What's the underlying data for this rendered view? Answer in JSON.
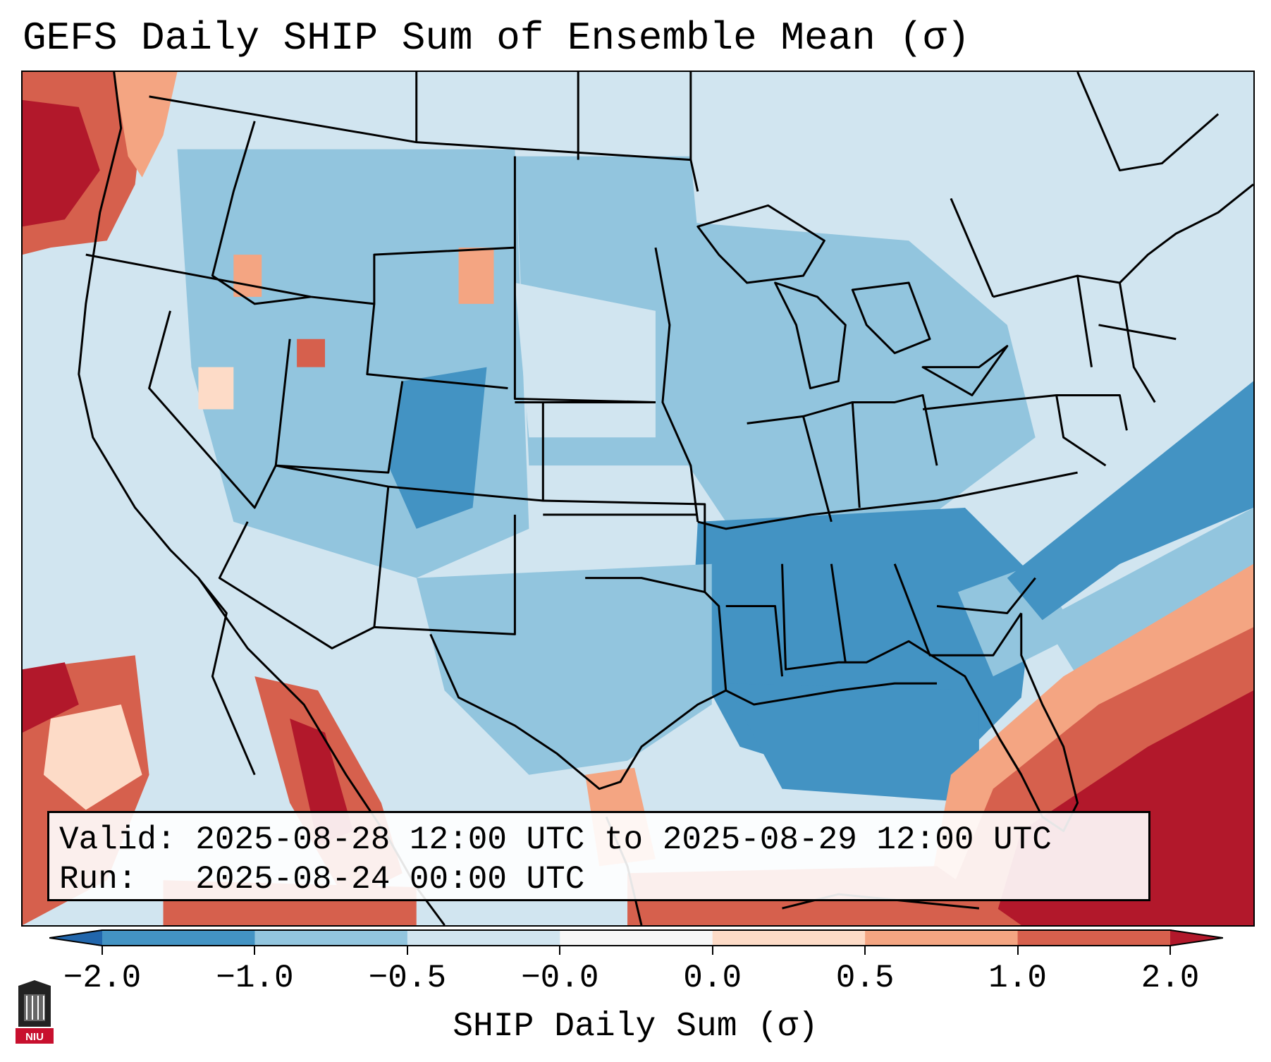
{
  "title": "GEFS Daily SHIP Sum of Ensemble Mean (σ)",
  "info": {
    "valid_label": "Valid:",
    "valid_value": "2025-08-28 12:00 UTC to 2025-08-29 12:00 UTC",
    "run_label": "Run:",
    "run_value": "2025-08-24 00:00 UTC"
  },
  "colorbar": {
    "label": "SHIP Daily Sum (σ)",
    "ticks": [
      "−2.0",
      "−1.0",
      "−0.5",
      "−0.0",
      "0.0",
      "0.5",
      "1.0",
      "2.0"
    ],
    "colors": [
      "#2166ac",
      "#4393c3",
      "#92c5de",
      "#d1e5f0",
      "#f7f7f7",
      "#fddbc7",
      "#f4a582",
      "#d6604d",
      "#b2182b"
    ]
  },
  "logo": {
    "text": "NIU"
  }
}
